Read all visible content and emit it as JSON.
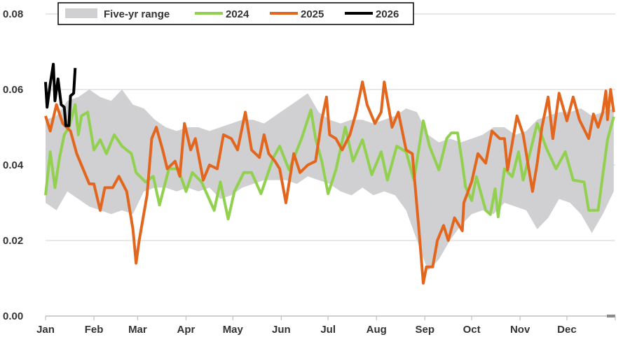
{
  "chart_data": {
    "type": "line",
    "title": "",
    "xlabel": "",
    "ylabel": "",
    "ylim": [
      0,
      0.08
    ],
    "y_ticks": [
      "0.00",
      "0.02",
      "0.04",
      "0.06",
      "0.08"
    ],
    "x_ticks": [
      "Jan",
      "Feb",
      "Mar",
      "Apr",
      "May",
      "Jun",
      "Jul",
      "Aug",
      "Sep",
      "Oct",
      "Nov",
      "Dec"
    ],
    "grid": "horizontal",
    "legend_position": "top",
    "legend": [
      "Five-yr range",
      "2024",
      "2025",
      "2026"
    ],
    "colors": {
      "range": "#d0d0d2",
      "2024": "#92d050",
      "2025": "#e3661f",
      "2026": "#000000",
      "grid": "#d9d9d9"
    },
    "range": {
      "name": "Five-yr range",
      "x": [
        "01-01",
        "01-08",
        "01-15",
        "01-22",
        "01-29",
        "02-05",
        "02-12",
        "02-19",
        "02-26",
        "03-05",
        "03-12",
        "03-19",
        "03-26",
        "04-02",
        "04-09",
        "04-16",
        "04-23",
        "04-30",
        "05-07",
        "05-14",
        "05-21",
        "05-28",
        "06-04",
        "06-11",
        "06-18",
        "06-25",
        "07-02",
        "07-09",
        "07-16",
        "07-23",
        "07-30",
        "08-06",
        "08-13",
        "08-20",
        "08-27",
        "09-03",
        "09-10",
        "09-17",
        "09-24",
        "10-01",
        "10-08",
        "10-15",
        "10-22",
        "10-29",
        "11-05",
        "11-12",
        "11-19",
        "11-26",
        "12-03",
        "12-10",
        "12-17",
        "12-24",
        "12-31"
      ],
      "low": [
        0.03,
        0.028,
        0.033,
        0.031,
        0.029,
        0.028,
        0.027,
        0.028,
        0.027,
        0.033,
        0.034,
        0.034,
        0.033,
        0.034,
        0.033,
        0.034,
        0.031,
        0.032,
        0.034,
        0.035,
        0.036,
        0.036,
        0.036,
        0.035,
        0.037,
        0.036,
        0.035,
        0.033,
        0.032,
        0.034,
        0.032,
        0.033,
        0.032,
        0.028,
        0.02,
        0.012,
        0.015,
        0.02,
        0.024,
        0.027,
        0.028,
        0.027,
        0.03,
        0.029,
        0.028,
        0.023,
        0.026,
        0.031,
        0.03,
        0.027,
        0.022,
        0.027,
        0.033
      ],
      "high": [
        0.052,
        0.053,
        0.057,
        0.058,
        0.06,
        0.058,
        0.057,
        0.06,
        0.056,
        0.055,
        0.052,
        0.05,
        0.049,
        0.05,
        0.05,
        0.049,
        0.05,
        0.051,
        0.052,
        0.052,
        0.051,
        0.053,
        0.055,
        0.057,
        0.059,
        0.054,
        0.052,
        0.051,
        0.052,
        0.052,
        0.051,
        0.052,
        0.053,
        0.055,
        0.054,
        0.048,
        0.046,
        0.047,
        0.046,
        0.047,
        0.048,
        0.05,
        0.05,
        0.048,
        0.049,
        0.052,
        0.053,
        0.054,
        0.054,
        0.055,
        0.053,
        0.054,
        0.055
      ]
    },
    "series": [
      {
        "name": "2024",
        "x": [
          "01-01",
          "01-04",
          "01-07",
          "01-10",
          "01-13",
          "01-16",
          "01-20",
          "01-22",
          "01-24",
          "01-28",
          "02-01",
          "02-05",
          "02-09",
          "02-14",
          "02-19",
          "02-25",
          "02-28",
          "03-06",
          "03-11",
          "03-15",
          "03-21",
          "03-27",
          "04-01",
          "04-05",
          "04-11",
          "04-19",
          "04-23",
          "04-28",
          "05-02",
          "05-08",
          "05-13",
          "05-19",
          "05-27",
          "05-31",
          "06-06",
          "06-14",
          "06-20",
          "06-23",
          "06-27",
          "07-01",
          "07-06",
          "07-12",
          "07-17",
          "07-23",
          "07-29",
          "08-04",
          "08-08",
          "08-14",
          "08-20",
          "08-25",
          "08-31",
          "09-04",
          "09-10",
          "09-15",
          "09-18",
          "09-22",
          "09-25",
          "09-27",
          "10-01",
          "10-04",
          "10-10",
          "10-13",
          "10-16",
          "10-18",
          "10-22",
          "10-27",
          "10-31",
          "11-03",
          "11-08",
          "11-12",
          "11-18",
          "11-24",
          "11-30",
          "12-05",
          "12-12",
          "12-15",
          "12-21",
          "12-24",
          "12-27",
          "12-31"
        ],
        "y": [
          0.032,
          0.0435,
          0.034,
          0.042,
          0.048,
          0.05,
          0.056,
          0.048,
          0.053,
          0.054,
          0.044,
          0.0467,
          0.043,
          0.048,
          0.045,
          0.043,
          0.038,
          0.0355,
          0.037,
          0.0294,
          0.039,
          0.039,
          0.033,
          0.038,
          0.0355,
          0.028,
          0.0355,
          0.0257,
          0.033,
          0.038,
          0.038,
          0.0324,
          0.042,
          0.045,
          0.0387,
          0.047,
          0.0546,
          0.047,
          0.041,
          0.0324,
          0.0387,
          0.05,
          0.041,
          0.0467,
          0.0374,
          0.0435,
          0.036,
          0.045,
          0.0435,
          0.036,
          0.0517,
          0.045,
          0.0387,
          0.047,
          0.0485,
          0.0485,
          0.0405,
          0.0343,
          0.0306,
          0.0369,
          0.028,
          0.0269,
          0.0337,
          0.0263,
          0.039,
          0.0369,
          0.0435,
          0.036,
          0.0443,
          0.051,
          0.0443,
          0.039,
          0.0435,
          0.036,
          0.0355,
          0.028,
          0.028,
          0.0374,
          0.0467,
          0.0528
        ]
      },
      {
        "name": "2025",
        "x": [
          "01-01",
          "01-04",
          "01-08",
          "01-12",
          "01-17",
          "01-21",
          "01-26",
          "01-29",
          "02-01",
          "02-05",
          "02-08",
          "02-13",
          "02-17",
          "02-22",
          "02-26",
          "02-28",
          "03-02",
          "03-07",
          "03-10",
          "03-13",
          "03-17",
          "03-20",
          "03-25",
          "03-28",
          "03-31",
          "04-04",
          "04-07",
          "04-12",
          "04-16",
          "04-21",
          "04-25",
          "04-30",
          "05-04",
          "05-09",
          "05-13",
          "05-18",
          "05-21",
          "05-24",
          "05-28",
          "05-31",
          "06-04",
          "06-09",
          "06-13",
          "06-18",
          "06-23",
          "06-27",
          "06-30",
          "07-02",
          "07-06",
          "07-10",
          "07-15",
          "07-19",
          "07-23",
          "07-26",
          "07-31",
          "08-04",
          "08-06",
          "08-11",
          "08-15",
          "08-20",
          "08-24",
          "08-28",
          "08-31",
          "09-02",
          "09-06",
          "09-09",
          "09-13",
          "09-16",
          "09-20",
          "09-25",
          "09-26",
          "10-01",
          "10-05",
          "10-10",
          "10-14",
          "10-19",
          "10-22",
          "10-24",
          "10-30",
          "11-03",
          "11-09",
          "11-12",
          "11-15",
          "11-19",
          "11-22",
          "11-26",
          "12-01",
          "12-05",
          "12-09",
          "12-15",
          "12-18",
          "12-21",
          "12-24",
          "12-26",
          "12-27",
          "12-29",
          "12-31"
        ],
        "y": [
          0.053,
          0.049,
          0.056,
          0.051,
          0.049,
          0.043,
          0.038,
          0.035,
          0.035,
          0.028,
          0.034,
          0.034,
          0.037,
          0.033,
          0.023,
          0.014,
          0.02,
          0.032,
          0.047,
          0.05,
          0.044,
          0.039,
          0.041,
          0.037,
          0.051,
          0.044,
          0.047,
          0.036,
          0.04,
          0.039,
          0.048,
          0.047,
          0.044,
          0.054,
          0.044,
          0.042,
          0.048,
          0.043,
          0.041,
          0.039,
          0.03,
          0.043,
          0.038,
          0.04,
          0.041,
          0.052,
          0.058,
          0.048,
          0.047,
          0.044,
          0.048,
          0.054,
          0.062,
          0.056,
          0.051,
          0.054,
          0.062,
          0.05,
          0.054,
          0.044,
          0.043,
          0.024,
          0.0087,
          0.013,
          0.013,
          0.02,
          0.024,
          0.02,
          0.026,
          0.0226,
          0.03,
          0.0356,
          0.043,
          0.0405,
          0.049,
          0.047,
          0.047,
          0.0387,
          0.053,
          0.048,
          0.033,
          0.0405,
          0.05,
          0.058,
          0.047,
          0.059,
          0.0517,
          0.058,
          0.052,
          0.047,
          0.0535,
          0.05,
          0.054,
          0.0596,
          0.052,
          0.06,
          0.054
        ]
      },
      {
        "name": "2026",
        "x": [
          "01-01",
          "01-02",
          "01-04",
          "01-06",
          "01-07",
          "01-09",
          "01-11",
          "01-13",
          "01-14",
          "01-16",
          "01-17",
          "01-19",
          "01-20"
        ],
        "y": [
          0.062,
          0.0553,
          0.0615,
          0.0667,
          0.057,
          0.0628,
          0.056,
          0.0553,
          0.0504,
          0.0504,
          0.0583,
          0.059,
          0.0657
        ]
      }
    ]
  }
}
